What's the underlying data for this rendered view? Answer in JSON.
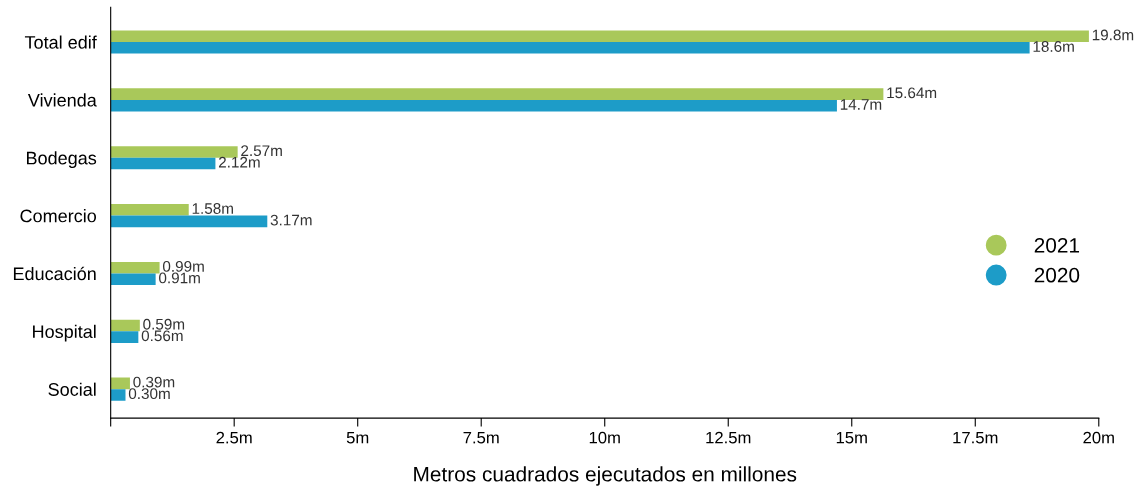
{
  "chart_data": {
    "type": "bar",
    "orientation": "horizontal",
    "xlabel": "Metros cuadrados ejecutados en millones",
    "categories": [
      "Total edif",
      "Vivienda",
      "Bodegas",
      "Comercio",
      "Educación",
      "Hospital",
      "Social"
    ],
    "series": [
      {
        "name": "2021",
        "color": "#a9c85a",
        "values": [
          19.8,
          15.64,
          2.57,
          1.58,
          0.99,
          0.59,
          0.39
        ],
        "value_labels": [
          "19.8m",
          "15.64m",
          "2.57m",
          "1.58m",
          "0.99m",
          "0.59m",
          "0.39m"
        ]
      },
      {
        "name": "2020",
        "color": "#1d9cc8",
        "values": [
          18.6,
          14.7,
          2.12,
          3.17,
          0.91,
          0.56,
          0.3
        ],
        "value_labels": [
          "18.6m",
          "14.7m",
          "2.12m",
          "3.17m",
          "0.91m",
          "0.56m",
          "0.30m"
        ]
      }
    ],
    "xlim": [
      0,
      20
    ],
    "xticks": [
      {
        "value": 0,
        "label": null
      },
      {
        "value": 2.5,
        "label": "2.5m"
      },
      {
        "value": 5,
        "label": "5m"
      },
      {
        "value": 7.5,
        "label": "7.5m"
      },
      {
        "value": 10,
        "label": "10m"
      },
      {
        "value": 12.5,
        "label": "12.5m"
      },
      {
        "value": 15,
        "label": "15m"
      },
      {
        "value": 17.5,
        "label": "17.5m"
      },
      {
        "value": 20,
        "label": "20m"
      }
    ],
    "grid": false,
    "legend": "right"
  }
}
